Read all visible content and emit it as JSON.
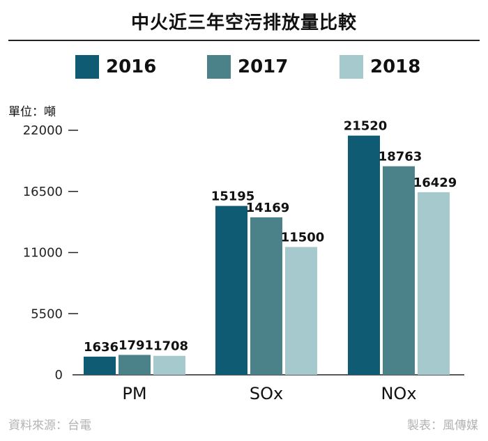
{
  "title": "中火近三年空污排放量比較",
  "unit_label": "單位：噸",
  "source": "資料來源：台電",
  "credit": "製表：風傳媒",
  "colors": {
    "2016": "#0f5b73",
    "2017": "#4b8289",
    "2018": "#a6c9ce"
  },
  "chart_data": {
    "type": "bar",
    "title": "中火近三年空污排放量比較",
    "ylabel": "單位：噸",
    "xlabel": "",
    "categories": [
      "PM",
      "SOx",
      "NOx"
    ],
    "series": [
      {
        "name": "2016",
        "values": [
          1636,
          15195,
          21520
        ]
      },
      {
        "name": "2017",
        "values": [
          1791,
          14169,
          18763
        ]
      },
      {
        "name": "2018",
        "values": [
          1708,
          11500,
          16429
        ]
      }
    ],
    "yticks": [
      0,
      5500,
      11000,
      16500,
      22000
    ],
    "ylim": [
      0,
      22000
    ],
    "grid": false,
    "legend": "top"
  }
}
